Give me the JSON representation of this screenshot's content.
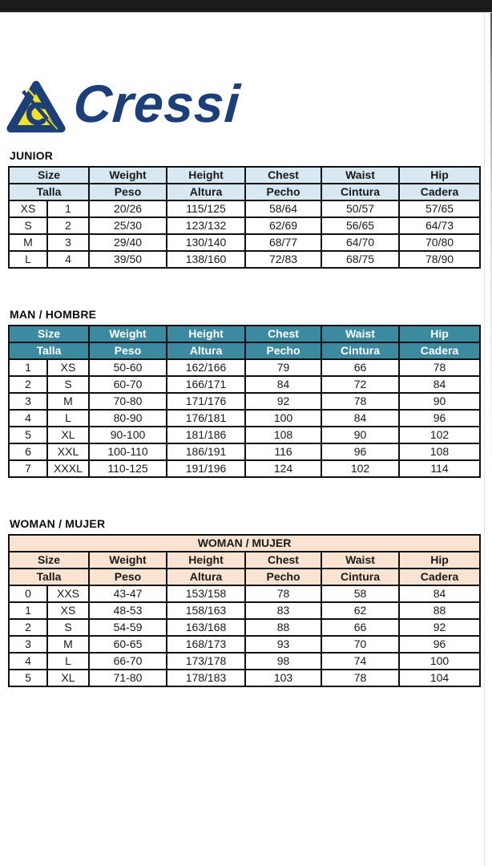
{
  "logo": {
    "wordmark": "Cressi",
    "brand_navy": "#1c3e79",
    "brand_yellow": "#f0e229"
  },
  "page_colors": {
    "top_bar": "#1b1b1e",
    "background": "#ffffff",
    "table_border": "#101010"
  },
  "tables": {
    "junior": {
      "section_label": "JUNIOR",
      "banner": null,
      "colors": {
        "header_bg": "#d8e8f2",
        "header_text": "#1a1a1a"
      },
      "columns_en": [
        "Size",
        "Weight",
        "Height",
        "Chest",
        "Waist",
        "Hip"
      ],
      "columns_es": [
        "Talla",
        "Peso",
        "Altura",
        "Pecho",
        "Cintura",
        "Cadera"
      ],
      "rows": [
        [
          "XS",
          "1",
          "20/26",
          "115/125",
          "58/64",
          "50/57",
          "57/65"
        ],
        [
          "S",
          "2",
          "25/30",
          "123/132",
          "62/69",
          "56/65",
          "64/73"
        ],
        [
          "M",
          "3",
          "29/40",
          "130/140",
          "68/77",
          "64/70",
          "70/80"
        ],
        [
          "L",
          "4",
          "39/50",
          "138/160",
          "72/83",
          "68/75",
          "78/90"
        ]
      ]
    },
    "man": {
      "section_label": "MAN / HOMBRE",
      "banner": null,
      "colors": {
        "header_bg": "#3c8aa0",
        "header_text": "#ffffff"
      },
      "columns_en": [
        "Size",
        "Weight",
        "Height",
        "Chest",
        "Waist",
        "Hip"
      ],
      "columns_es": [
        "Talla",
        "Peso",
        "Altura",
        "Pecho",
        "Cintura",
        "Cadera"
      ],
      "rows": [
        [
          "1",
          "XS",
          "50-60",
          "162/166",
          "79",
          "66",
          "78"
        ],
        [
          "2",
          "S",
          "60-70",
          "166/171",
          "84",
          "72",
          "84"
        ],
        [
          "3",
          "M",
          "70-80",
          "171/176",
          "92",
          "78",
          "90"
        ],
        [
          "4",
          "L",
          "80-90",
          "176/181",
          "100",
          "84",
          "96"
        ],
        [
          "5",
          "XL",
          "90-100",
          "181/186",
          "108",
          "90",
          "102"
        ],
        [
          "6",
          "XXL",
          "100-110",
          "186/191",
          "116",
          "96",
          "108"
        ],
        [
          "7",
          "XXXL",
          "110-125",
          "191/196",
          "124",
          "102",
          "114"
        ]
      ]
    },
    "woman": {
      "section_label": "WOMAN / MUJER",
      "banner": "WOMAN / MUJER",
      "colors": {
        "header_bg": "#fae3d0",
        "header_text": "#1a1a1a"
      },
      "columns_en": [
        "Size",
        "Weight",
        "Height",
        "Chest",
        "Waist",
        "Hip"
      ],
      "columns_es": [
        "Talla",
        "Peso",
        "Altura",
        "Pecho",
        "Cintura",
        "Cadera"
      ],
      "rows": [
        [
          "0",
          "XXS",
          "43-47",
          "153/158",
          "78",
          "58",
          "84"
        ],
        [
          "1",
          "XS",
          "48-53",
          "158/163",
          "83",
          "62",
          "88"
        ],
        [
          "2",
          "S",
          "54-59",
          "163/168",
          "88",
          "66",
          "92"
        ],
        [
          "3",
          "M",
          "60-65",
          "168/173",
          "93",
          "70",
          "96"
        ],
        [
          "4",
          "L",
          "66-70",
          "173/178",
          "98",
          "74",
          "100"
        ],
        [
          "5",
          "XL",
          "71-80",
          "178/183",
          "103",
          "78",
          "104"
        ]
      ]
    }
  }
}
